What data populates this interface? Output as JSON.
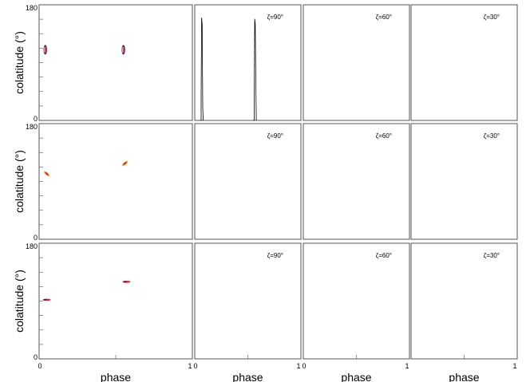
{
  "chart_data": {
    "type": "line",
    "grid": false,
    "rows": 3,
    "columns": 4,
    "x_range": [
      0,
      1
    ],
    "y_range": [
      0,
      180
    ],
    "ylabel": "colatitude (°)",
    "xlabel": "phase",
    "y_ticks": [
      "0",
      "180"
    ],
    "x_ticks": [
      {
        "left": "0",
        "right": "1"
      },
      {
        "left": "0",
        "right": "1"
      },
      {
        "left": "0",
        "right": "1"
      },
      {
        "left": "",
        "right": "1"
      }
    ],
    "panel_labels": [
      "",
      "ζ=90°",
      "ζ=60°",
      "ζ=30°"
    ],
    "colors": {
      "frame": "#555555",
      "trace": "#000000",
      "spot_a": "#d62728",
      "spot_b": "#ff9f1c",
      "spot_c": "#3b1e8f"
    },
    "spots": [
      [
        {
          "phase": 0.04,
          "colatitude": 110,
          "shape": "vertical"
        },
        {
          "phase": 0.55,
          "colatitude": 110,
          "shape": "vertical"
        }
      ],
      [
        {
          "phase": 0.05,
          "colatitude": 102,
          "shape": "diagonal-down"
        },
        {
          "phase": 0.56,
          "colatitude": 118,
          "shape": "diagonal-up"
        }
      ],
      [
        {
          "phase": 0.05,
          "colatitude": 92,
          "shape": "horizontal"
        },
        {
          "phase": 0.57,
          "colatitude": 120,
          "shape": "horizontal"
        }
      ]
    ],
    "traces": [
      [
        {
          "phase": 0.05,
          "colatitude": 0
        },
        {
          "phase": 0.06,
          "colatitude": 0
        },
        {
          "phase": 0.06,
          "colatitude": 40
        },
        {
          "phase": 0.065,
          "colatitude": 160
        },
        {
          "phase": 0.07,
          "colatitude": 150
        },
        {
          "phase": 0.075,
          "colatitude": 20
        },
        {
          "phase": 0.08,
          "colatitude": 0
        }
      ],
      [
        {
          "phase": 0.55,
          "colatitude": 0
        },
        {
          "phase": 0.56,
          "colatitude": 0
        },
        {
          "phase": 0.56,
          "colatitude": 30
        },
        {
          "phase": 0.565,
          "colatitude": 158
        },
        {
          "phase": 0.57,
          "colatitude": 150
        },
        {
          "phase": 0.575,
          "colatitude": 60
        },
        {
          "phase": 0.58,
          "colatitude": 0
        }
      ]
    ]
  }
}
